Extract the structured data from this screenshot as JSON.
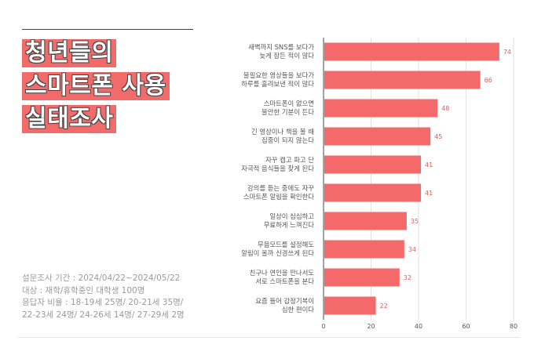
{
  "title": {
    "lines": [
      "청년들의",
      "스마트폰 사용",
      "실태조사"
    ]
  },
  "survey_info": {
    "lines": [
      "설문조사 기간 : 2024/04/22~2024/05/22",
      "대상 : 재학/휴학중인 대학생 100명",
      "응답자 비율 : 18-19세 25명/ 20-21세 35명/",
      "22-23세 24명/ 24-26세 14명/ 27-29세 2명"
    ]
  },
  "colors": {
    "accent": "#f16b6b",
    "bar": "#f46a6a",
    "value_label": "#e85b5b"
  },
  "chart_data": {
    "type": "bar",
    "orientation": "horizontal",
    "categories": [
      [
        "새벽까지 SNS를 보다가",
        "늦게 잠든 적이 많다"
      ],
      [
        "불필요한 영상들을 보다가",
        "하루를 흘려보낸 적이 많다"
      ],
      [
        "스마트폰이 없으면",
        "불안한 기분이 든다"
      ],
      [
        "긴 영상이나 책을 볼 때",
        "집중이 되지 않는다"
      ],
      [
        "자꾸 캡고 파고 단",
        "자극적 음식들을 찾게 된다"
      ],
      [
        "강의를 듣는 중에도 자꾸",
        "스마트폰 알림을 확인한다"
      ],
      [
        "일상이 심심하고",
        "무료하게 느껴진다"
      ],
      [
        "무음모드를 설정해도",
        "알림이 올까 신경쓰게 된다"
      ],
      [
        "친구나 연인을 만나서도",
        "서로 스마트폰을 본다"
      ],
      [
        "요즘 들어 감정기복이",
        "심한 편이다"
      ]
    ],
    "values": [
      74,
      66,
      48,
      45,
      41,
      41,
      35,
      34,
      32,
      22
    ],
    "xlim": [
      0,
      80
    ],
    "xticks": [
      0,
      20,
      40,
      60,
      80
    ],
    "grid": true,
    "legend": "none"
  }
}
